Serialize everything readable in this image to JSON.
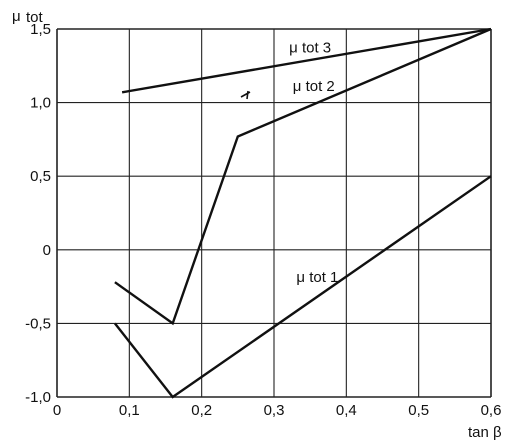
{
  "chart_data": {
    "type": "line",
    "title": "",
    "xlabel": "tan β",
    "ylabel": "μ tot",
    "xlim": [
      0,
      0.6
    ],
    "ylim": [
      -1.0,
      1.5
    ],
    "grid": true,
    "x_ticks": [
      "0",
      "0,1",
      "0,2",
      "0,3",
      "0,4",
      "0,5",
      "0,6"
    ],
    "y_ticks": [
      "-1,0",
      "-0,5",
      "0",
      "0,5",
      "1,0",
      "1,5"
    ],
    "series": [
      {
        "name": "μ tot 1",
        "x": [
          0.08,
          0.16,
          0.6
        ],
        "y": [
          -0.5,
          -1.0,
          0.5
        ]
      },
      {
        "name": "μ tot 2",
        "x": [
          0.08,
          0.16,
          0.25,
          0.6
        ],
        "y": [
          -0.22,
          -0.5,
          0.77,
          1.5
        ]
      },
      {
        "name": "μ tot 3",
        "x": [
          0.09,
          0.6
        ],
        "y": [
          1.07,
          1.5
        ]
      }
    ]
  }
}
